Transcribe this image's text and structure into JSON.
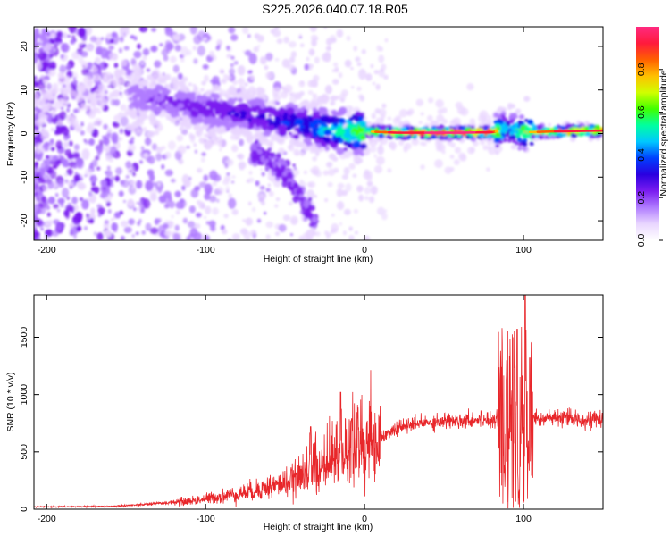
{
  "figure": {
    "title": "S225.2026.040.07.18.R05"
  },
  "colors": {
    "snr_line": "#e8262a",
    "colormap": [
      "#ffffff",
      "#e9d6ff",
      "#b07cff",
      "#7a1cf0",
      "#2a00e0",
      "#0040ff",
      "#00c8ff",
      "#00ffa0",
      "#40ff00",
      "#d0ff00",
      "#ffc000",
      "#ff6000",
      "#ff1a3c",
      "#ff2a80"
    ]
  },
  "chart_data": [
    {
      "type": "heatmap",
      "name": "spectrogram",
      "title": "S225.2026.040.07.18.R05",
      "xlabel": "Height of straight line (km)",
      "ylabel": "Frequency (Hz)",
      "xlim": [
        -208,
        150
      ],
      "ylim": [
        -24.5,
        24.5
      ],
      "xticks": [
        -200,
        -100,
        0,
        100
      ],
      "yticks": [
        -20,
        -10,
        0,
        10,
        20
      ],
      "colorbar": {
        "label": "Normalized spectral amplitude",
        "range": [
          0,
          1
        ],
        "ticks": [
          0.0,
          0.2,
          0.4,
          0.6,
          0.8
        ]
      },
      "ridge": [
        {
          "x": -140,
          "f": 8.0,
          "amp": 0.15
        },
        {
          "x": -120,
          "f": 7.0,
          "amp": 0.2
        },
        {
          "x": -100,
          "f": 5.5,
          "amp": 0.22
        },
        {
          "x": -80,
          "f": 4.5,
          "amp": 0.25
        },
        {
          "x": -60,
          "f": 3.5,
          "amp": 0.3
        },
        {
          "x": -40,
          "f": 2.0,
          "amp": 0.35
        },
        {
          "x": -20,
          "f": 0.5,
          "amp": 0.5
        },
        {
          "x": 0,
          "f": 0.5,
          "amp": 0.7
        },
        {
          "x": 20,
          "f": 0.2,
          "amp": 0.9
        },
        {
          "x": 60,
          "f": 0.2,
          "amp": 0.95
        },
        {
          "x": 80,
          "f": 0.3,
          "amp": 0.9
        },
        {
          "x": 90,
          "f": 1.0,
          "amp": 0.4
        },
        {
          "x": 100,
          "f": 0.3,
          "amp": 0.7
        },
        {
          "x": 120,
          "f": 0.5,
          "amp": 0.85
        },
        {
          "x": 150,
          "f": 0.7,
          "amp": 0.9
        }
      ],
      "side_branch": [
        {
          "x": -70,
          "f": -4
        },
        {
          "x": -50,
          "f": -9
        },
        {
          "x": -40,
          "f": -14
        },
        {
          "x": -33,
          "f": -19
        },
        {
          "x": -30,
          "f": -21
        }
      ]
    },
    {
      "type": "line",
      "name": "snr",
      "xlabel": "Height of straight line (km)",
      "ylabel": "SNR (10 * v/v)",
      "xlim": [
        -208,
        150
      ],
      "ylim": [
        0,
        1870
      ],
      "xticks": [
        -200,
        -100,
        0,
        100
      ],
      "yticks": [
        0,
        500,
        1000,
        1500
      ],
      "envelope": [
        {
          "x": -208,
          "y": 20
        },
        {
          "x": -160,
          "y": 25
        },
        {
          "x": -140,
          "y": 40
        },
        {
          "x": -110,
          "y": 70
        },
        {
          "x": -90,
          "y": 110
        },
        {
          "x": -70,
          "y": 160
        },
        {
          "x": -50,
          "y": 230
        },
        {
          "x": -30,
          "y": 330
        },
        {
          "x": -15,
          "y": 420
        },
        {
          "x": 0,
          "y": 520
        },
        {
          "x": 10,
          "y": 620
        },
        {
          "x": 20,
          "y": 700
        },
        {
          "x": 30,
          "y": 740
        },
        {
          "x": 50,
          "y": 770
        },
        {
          "x": 70,
          "y": 780
        },
        {
          "x": 85,
          "y": 790
        },
        {
          "x": 100,
          "y": 800
        },
        {
          "x": 120,
          "y": 790
        },
        {
          "x": 150,
          "y": 780
        }
      ],
      "spikes": [
        {
          "x": -34,
          "y": 720
        },
        {
          "x": -15,
          "y": 1020
        },
        {
          "x": -8,
          "y": 790
        },
        {
          "x": 90,
          "y": 1550
        },
        {
          "x": 96,
          "y": 1570
        },
        {
          "x": 101,
          "y": 1870
        },
        {
          "x": 104,
          "y": 1320
        }
      ]
    }
  ]
}
